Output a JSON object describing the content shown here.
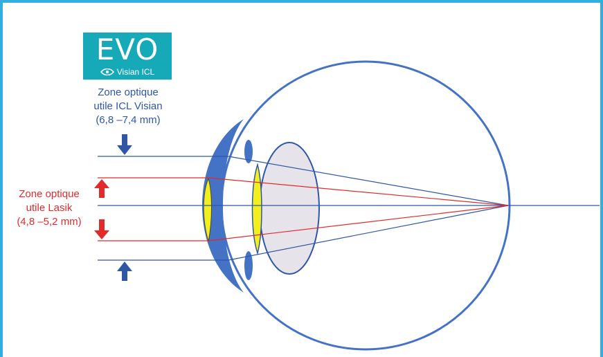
{
  "logo": {
    "brand": "EVO",
    "product": "Visian ICL",
    "brand_color": "#16aab8"
  },
  "labels": {
    "icl": {
      "line1": "Zone optique",
      "line2": "utile ICL Visian",
      "line3": "(6,8 –7,4 mm)",
      "color": "#2f57a6"
    },
    "lasik": {
      "line1": "Zone optique",
      "line2": "utile Lasik",
      "line3": "(4,8 –5,2 mm)",
      "color": "#e32a2a"
    }
  },
  "colors": {
    "frame": "#33aee0",
    "eye_wall": "#4472c4",
    "icl_rays": "#2f57a6",
    "lasik_rays": "#e32a2a",
    "lens_fill": "#e6e4ea",
    "implant_fill": "#f2ef1e"
  }
}
